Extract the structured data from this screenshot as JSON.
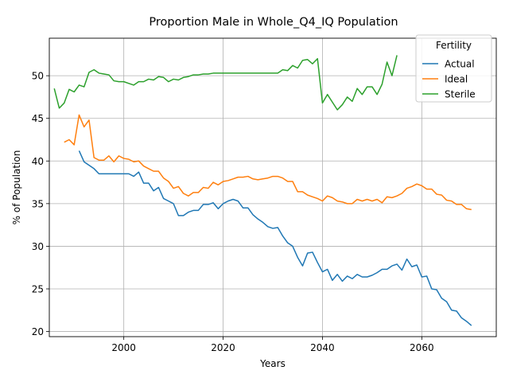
{
  "chart_data": {
    "type": "line",
    "title": "Proportion Male in Whole_Q4_IQ Population",
    "xlabel": "Years",
    "ylabel": "% of Population",
    "xlim": [
      1985,
      2075
    ],
    "ylim": [
      19.4,
      54.4
    ],
    "xticks": [
      2000,
      2020,
      2040,
      2060
    ],
    "yticks": [
      20,
      25,
      30,
      35,
      40,
      45,
      50
    ],
    "grid": true,
    "legend": {
      "title": "Fertility",
      "placement": "top-right"
    },
    "series": [
      {
        "name": "Actual",
        "color": "#1f77b4",
        "x": [
          1991,
          1992,
          1993,
          1994,
          1995,
          1996,
          1997,
          1998,
          1999,
          2000,
          2001,
          2002,
          2003,
          2004,
          2005,
          2006,
          2007,
          2008,
          2009,
          2010,
          2011,
          2012,
          2013,
          2014,
          2015,
          2016,
          2017,
          2018,
          2019,
          2020,
          2021,
          2022,
          2023,
          2024,
          2025,
          2026,
          2027,
          2028,
          2029,
          2030,
          2031,
          2032,
          2033,
          2034,
          2035,
          2036,
          2037,
          2038,
          2039,
          2040,
          2041,
          2042,
          2043,
          2044,
          2045,
          2046,
          2047,
          2048,
          2049,
          2050,
          2051,
          2052,
          2053,
          2054,
          2055,
          2056,
          2057,
          2058,
          2059,
          2060,
          2061,
          2062,
          2063,
          2064,
          2065,
          2066,
          2067,
          2068,
          2069,
          2070
        ],
        "y": [
          41.2,
          39.9,
          39.5,
          39.1,
          38.5,
          38.5,
          38.5,
          38.5,
          38.5,
          38.5,
          38.5,
          38.2,
          38.7,
          37.4,
          37.4,
          36.5,
          36.9,
          35.6,
          35.3,
          35.0,
          33.6,
          33.6,
          34.0,
          34.2,
          34.2,
          34.9,
          34.9,
          35.1,
          34.4,
          35.0,
          35.3,
          35.5,
          35.3,
          34.5,
          34.5,
          33.7,
          33.2,
          32.8,
          32.3,
          32.1,
          32.2,
          31.2,
          30.4,
          30.0,
          28.7,
          27.7,
          29.2,
          29.3,
          28.1,
          27.0,
          27.3,
          26.0,
          26.7,
          25.9,
          26.5,
          26.2,
          26.7,
          26.4,
          26.4,
          26.6,
          26.9,
          27.3,
          27.3,
          27.7,
          27.9,
          27.2,
          28.5,
          27.6,
          27.8,
          26.4,
          26.5,
          25.0,
          24.9,
          23.9,
          23.5,
          22.5,
          22.4,
          21.6,
          21.2,
          20.7
        ]
      },
      {
        "name": "Ideal",
        "color": "#ff7f0e",
        "x": [
          1988,
          1989,
          1990,
          1991,
          1992,
          1993,
          1994,
          1995,
          1996,
          1997,
          1998,
          1999,
          2000,
          2001,
          2002,
          2003,
          2004,
          2005,
          2006,
          2007,
          2008,
          2009,
          2010,
          2011,
          2012,
          2013,
          2014,
          2015,
          2016,
          2017,
          2018,
          2019,
          2020,
          2021,
          2022,
          2023,
          2024,
          2025,
          2026,
          2027,
          2028,
          2029,
          2030,
          2031,
          2032,
          2033,
          2034,
          2035,
          2036,
          2037,
          2038,
          2039,
          2040,
          2041,
          2042,
          2043,
          2044,
          2045,
          2046,
          2047,
          2048,
          2049,
          2050,
          2051,
          2052,
          2053,
          2054,
          2055,
          2056,
          2057,
          2058,
          2059,
          2060,
          2061,
          2062,
          2063,
          2064,
          2065,
          2066,
          2067,
          2068,
          2069,
          2070
        ],
        "y": [
          42.2,
          42.5,
          41.9,
          45.4,
          44.0,
          44.8,
          40.4,
          40.1,
          40.1,
          40.6,
          39.9,
          40.6,
          40.3,
          40.2,
          39.9,
          40.0,
          39.4,
          39.1,
          38.8,
          38.8,
          38.0,
          37.6,
          36.8,
          37.0,
          36.2,
          35.9,
          36.3,
          36.3,
          36.9,
          36.8,
          37.5,
          37.2,
          37.6,
          37.7,
          37.9,
          38.1,
          38.1,
          38.2,
          37.9,
          37.8,
          37.9,
          38.0,
          38.2,
          38.2,
          38.0,
          37.6,
          37.6,
          36.4,
          36.4,
          36.0,
          35.8,
          35.6,
          35.3,
          35.9,
          35.7,
          35.3,
          35.2,
          35.0,
          35.0,
          35.5,
          35.3,
          35.5,
          35.3,
          35.5,
          35.1,
          35.8,
          35.7,
          35.9,
          36.2,
          36.8,
          37.0,
          37.3,
          37.1,
          36.7,
          36.7,
          36.1,
          36.0,
          35.4,
          35.3,
          34.9,
          34.9,
          34.4,
          34.3
        ]
      },
      {
        "name": "Sterile",
        "color": "#2ca02c",
        "x": [
          1986,
          1987,
          1988,
          1989,
          1990,
          1991,
          1992,
          1993,
          1994,
          1995,
          1996,
          1997,
          1998,
          1999,
          2000,
          2001,
          2002,
          2003,
          2004,
          2005,
          2006,
          2007,
          2008,
          2009,
          2010,
          2011,
          2012,
          2013,
          2014,
          2015,
          2016,
          2017,
          2018,
          2019,
          2020,
          2021,
          2022,
          2023,
          2024,
          2025,
          2026,
          2027,
          2028,
          2029,
          2030,
          2031,
          2032,
          2033,
          2034,
          2035,
          2036,
          2037,
          2038,
          2039,
          2040,
          2041,
          2042,
          2043,
          2044,
          2045,
          2046,
          2047,
          2048,
          2049,
          2050,
          2051,
          2052,
          2053,
          2054,
          2055
        ],
        "y": [
          48.5,
          46.2,
          46.8,
          48.4,
          48.1,
          48.9,
          48.7,
          50.4,
          50.7,
          50.3,
          50.2,
          50.1,
          49.4,
          49.3,
          49.3,
          49.1,
          48.9,
          49.3,
          49.3,
          49.6,
          49.5,
          49.9,
          49.8,
          49.3,
          49.6,
          49.5,
          49.8,
          49.9,
          50.1,
          50.1,
          50.2,
          50.2,
          50.3,
          50.3,
          50.3,
          50.3,
          50.3,
          50.3,
          50.3,
          50.3,
          50.3,
          50.3,
          50.3,
          50.3,
          50.3,
          50.3,
          50.7,
          50.6,
          51.2,
          50.9,
          51.8,
          51.9,
          51.4,
          52.0,
          46.8,
          47.8,
          46.9,
          46.0,
          46.6,
          47.5,
          47.0,
          48.5,
          47.8,
          48.7,
          48.7,
          47.8,
          49.0,
          51.6,
          50.0,
          52.4
        ]
      }
    ]
  }
}
